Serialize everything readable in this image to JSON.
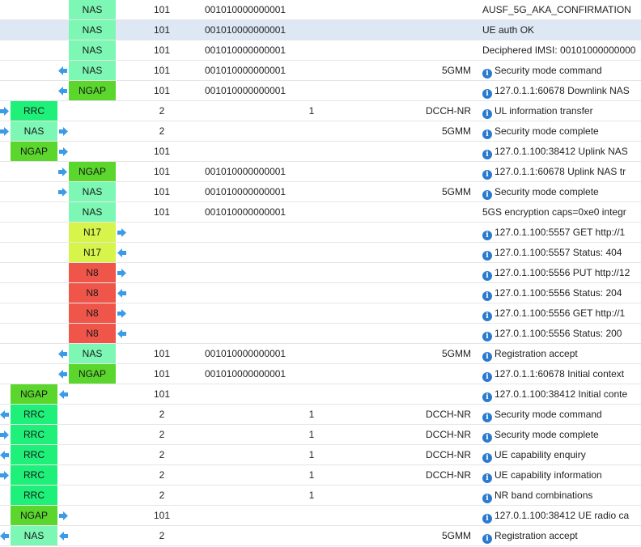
{
  "colors": {
    "NAS": "#7df7b4",
    "NGAP": "#5ad62c",
    "RRC": "#1ef07a",
    "N17": "#d7f44a",
    "N8": "#f0554a",
    "arrow": "#3b9be6",
    "info_icon": "#2a7bd0",
    "selected_row": "#dde8f4"
  },
  "rows": [
    {
      "lane": 2,
      "proto": "NAS",
      "arrow": "",
      "num": "101",
      "imsi": "001010000000001",
      "idx": "",
      "layer": "",
      "info_icon": false,
      "info": "AUSF_5G_AKA_CONFIRMATION"
    },
    {
      "lane": 2,
      "proto": "NAS",
      "arrow": "",
      "num": "101",
      "imsi": "001010000000001",
      "idx": "",
      "layer": "",
      "info_icon": false,
      "info": "UE auth OK",
      "selected": true
    },
    {
      "lane": 2,
      "proto": "NAS",
      "arrow": "",
      "num": "101",
      "imsi": "001010000000001",
      "idx": "",
      "layer": "",
      "info_icon": false,
      "info": "Deciphered IMSI: 00101000000000"
    },
    {
      "lane": 2,
      "proto": "NAS",
      "arrow": "left",
      "num": "101",
      "imsi": "001010000000001",
      "idx": "",
      "layer": "5GMM",
      "info_icon": true,
      "info": "Security mode command"
    },
    {
      "lane": 2,
      "proto": "NGAP",
      "arrow": "left",
      "num": "101",
      "imsi": "001010000000001",
      "idx": "",
      "layer": "",
      "info_icon": true,
      "info": "127.0.1.1:60678 Downlink NAS"
    },
    {
      "lane": 1,
      "proto": "RRC",
      "arrow": "right-in",
      "num": "2",
      "imsi": "",
      "idx": "1",
      "layer": "DCCH-NR",
      "info_icon": true,
      "info": "UL information transfer"
    },
    {
      "lane": 1,
      "proto": "NAS",
      "arrow": "right-both",
      "num": "2",
      "imsi": "",
      "idx": "",
      "layer": "5GMM",
      "info_icon": true,
      "info": "Security mode complete"
    },
    {
      "lane": 1,
      "proto": "NGAP",
      "arrow": "right",
      "num": "101",
      "imsi": "",
      "idx": "",
      "layer": "",
      "info_icon": true,
      "info": "127.0.1.100:38412 Uplink NAS"
    },
    {
      "lane": 2,
      "proto": "NGAP",
      "arrow": "right-in",
      "num": "101",
      "imsi": "001010000000001",
      "idx": "",
      "layer": "",
      "info_icon": true,
      "info": "127.0.1.1:60678 Uplink NAS tr"
    },
    {
      "lane": 2,
      "proto": "NAS",
      "arrow": "right-in",
      "num": "101",
      "imsi": "001010000000001",
      "idx": "",
      "layer": "5GMM",
      "info_icon": true,
      "info": "Security mode complete"
    },
    {
      "lane": 2,
      "proto": "NAS",
      "arrow": "",
      "num": "101",
      "imsi": "001010000000001",
      "idx": "",
      "layer": "",
      "info_icon": false,
      "info": "5GS encryption caps=0xe0 integr"
    },
    {
      "lane": 2,
      "proto": "N17",
      "arrow": "right",
      "num": "",
      "imsi": "",
      "idx": "",
      "layer": "",
      "info_icon": true,
      "info": "127.0.1.100:5557 GET http://1"
    },
    {
      "lane": 2,
      "proto": "N17",
      "arrow": "left-out",
      "num": "",
      "imsi": "",
      "idx": "",
      "layer": "",
      "info_icon": true,
      "info": "127.0.1.100:5557 Status: 404"
    },
    {
      "lane": 2,
      "proto": "N8",
      "arrow": "right",
      "num": "",
      "imsi": "",
      "idx": "",
      "layer": "",
      "info_icon": true,
      "info": "127.0.1.100:5556 PUT http://12"
    },
    {
      "lane": 2,
      "proto": "N8",
      "arrow": "left-out",
      "num": "",
      "imsi": "",
      "idx": "",
      "layer": "",
      "info_icon": true,
      "info": "127.0.1.100:5556 Status: 204"
    },
    {
      "lane": 2,
      "proto": "N8",
      "arrow": "right",
      "num": "",
      "imsi": "",
      "idx": "",
      "layer": "",
      "info_icon": true,
      "info": "127.0.1.100:5556 GET http://1"
    },
    {
      "lane": 2,
      "proto": "N8",
      "arrow": "left-out",
      "num": "",
      "imsi": "",
      "idx": "",
      "layer": "",
      "info_icon": true,
      "info": "127.0.1.100:5556 Status: 200"
    },
    {
      "lane": 2,
      "proto": "NAS",
      "arrow": "left",
      "num": "101",
      "imsi": "001010000000001",
      "idx": "",
      "layer": "5GMM",
      "info_icon": true,
      "info": "Registration accept"
    },
    {
      "lane": 2,
      "proto": "NGAP",
      "arrow": "left",
      "num": "101",
      "imsi": "001010000000001",
      "idx": "",
      "layer": "",
      "info_icon": true,
      "info": "127.0.1.1:60678 Initial context"
    },
    {
      "lane": 1,
      "proto": "NGAP",
      "arrow": "left-out",
      "num": "101",
      "imsi": "",
      "idx": "",
      "layer": "",
      "info_icon": true,
      "info": "127.0.1.100:38412 Initial conte"
    },
    {
      "lane": 1,
      "proto": "RRC",
      "arrow": "left-edge",
      "num": "2",
      "imsi": "",
      "idx": "1",
      "layer": "DCCH-NR",
      "info_icon": true,
      "info": "Security mode command"
    },
    {
      "lane": 1,
      "proto": "RRC",
      "arrow": "right-in",
      "num": "2",
      "imsi": "",
      "idx": "1",
      "layer": "DCCH-NR",
      "info_icon": true,
      "info": "Security mode complete"
    },
    {
      "lane": 1,
      "proto": "RRC",
      "arrow": "left-edge",
      "num": "2",
      "imsi": "",
      "idx": "1",
      "layer": "DCCH-NR",
      "info_icon": true,
      "info": "UE capability enquiry"
    },
    {
      "lane": 1,
      "proto": "RRC",
      "arrow": "right-in",
      "num": "2",
      "imsi": "",
      "idx": "1",
      "layer": "DCCH-NR",
      "info_icon": true,
      "info": "UE capability information"
    },
    {
      "lane": 1,
      "proto": "RRC",
      "arrow": "",
      "num": "2",
      "imsi": "",
      "idx": "1",
      "layer": "",
      "info_icon": true,
      "info": "NR band combinations"
    },
    {
      "lane": 1,
      "proto": "NGAP",
      "arrow": "right",
      "num": "101",
      "imsi": "",
      "idx": "",
      "layer": "",
      "info_icon": true,
      "info": "127.0.1.100:38412 UE radio ca"
    },
    {
      "lane": 1,
      "proto": "NAS",
      "arrow": "left-both",
      "num": "2",
      "imsi": "",
      "idx": "",
      "layer": "5GMM",
      "info_icon": true,
      "info": "Registration accept"
    }
  ]
}
